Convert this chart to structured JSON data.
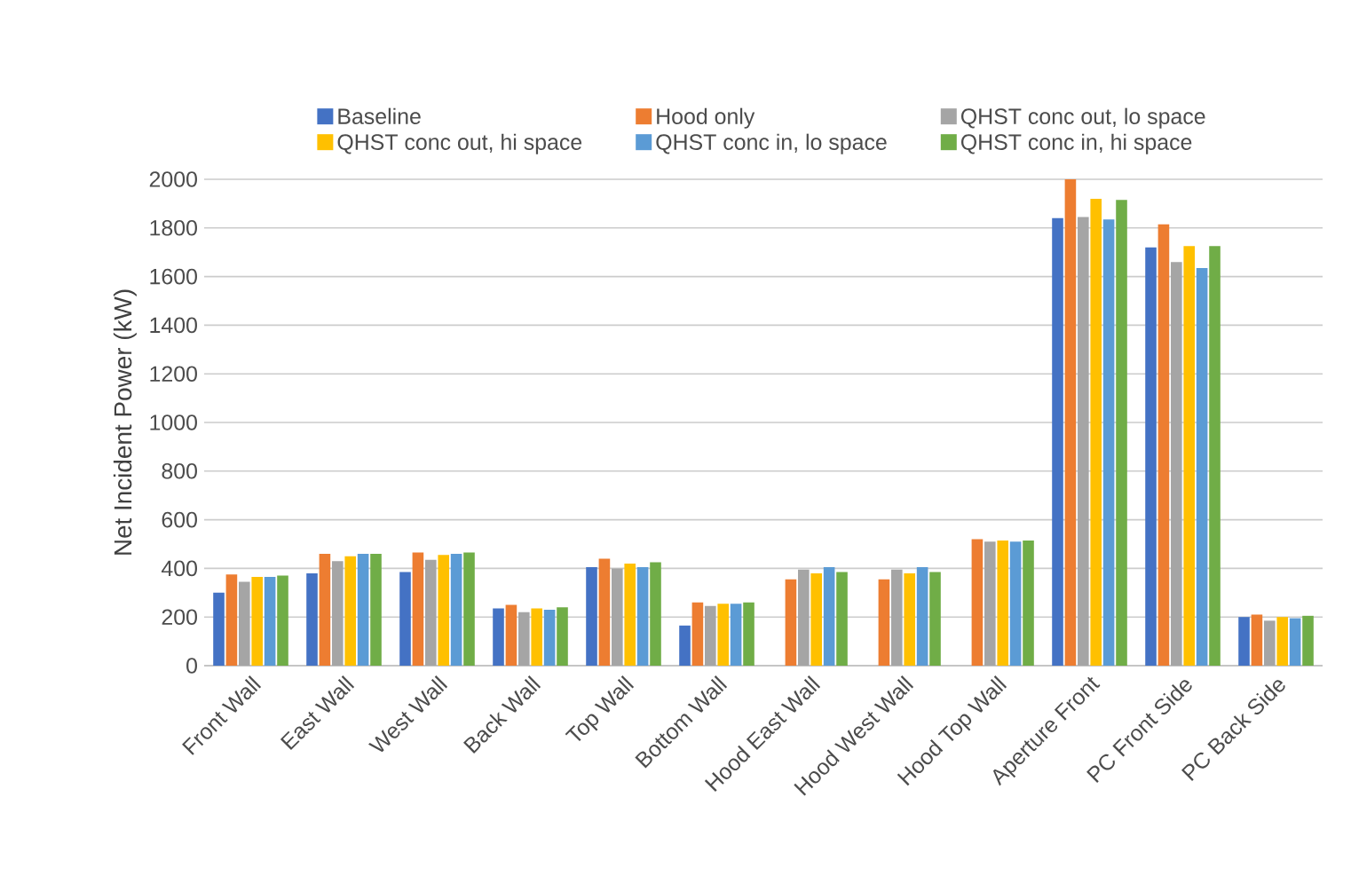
{
  "chart_data": {
    "type": "bar",
    "ylabel": "Net Incident Power (kW)",
    "categories": [
      "Front Wall",
      "East Wall",
      "West Wall",
      "Back Wall",
      "Top Wall",
      "Bottom Wall",
      "Hood East Wall",
      "Hood West Wall",
      "Hood Top Wall",
      "Aperture Front",
      "PC Front Side",
      "PC Back Side"
    ],
    "series": [
      {
        "name": "Baseline",
        "color": "#4472c4",
        "values": [
          300,
          380,
          385,
          235,
          405,
          165,
          null,
          null,
          null,
          1840,
          1720,
          200
        ]
      },
      {
        "name": "Hood only",
        "color": "#ed7d31",
        "values": [
          375,
          460,
          465,
          250,
          440,
          260,
          355,
          355,
          520,
          2000,
          1815,
          210
        ]
      },
      {
        "name": "QHST conc out, lo space",
        "color": "#a5a5a5",
        "values": [
          345,
          430,
          435,
          220,
          400,
          245,
          395,
          395,
          510,
          1845,
          1660,
          185
        ]
      },
      {
        "name": "QHST conc out, hi space",
        "color": "#ffc000",
        "values": [
          365,
          450,
          455,
          235,
          420,
          255,
          380,
          380,
          515,
          1920,
          1725,
          200
        ]
      },
      {
        "name": "QHST conc in, lo space",
        "color": "#5b9bd5",
        "values": [
          365,
          460,
          460,
          230,
          405,
          255,
          405,
          405,
          510,
          1835,
          1635,
          195
        ]
      },
      {
        "name": "QHST conc in, hi space",
        "color": "#70ad47",
        "values": [
          370,
          460,
          465,
          240,
          425,
          260,
          385,
          385,
          515,
          1915,
          1725,
          205
        ]
      }
    ],
    "ylim": [
      0,
      2000
    ],
    "yticks": [
      0,
      200,
      400,
      600,
      800,
      1000,
      1200,
      1400,
      1600,
      1800,
      2000
    ],
    "grid": "y",
    "legend": "top"
  }
}
